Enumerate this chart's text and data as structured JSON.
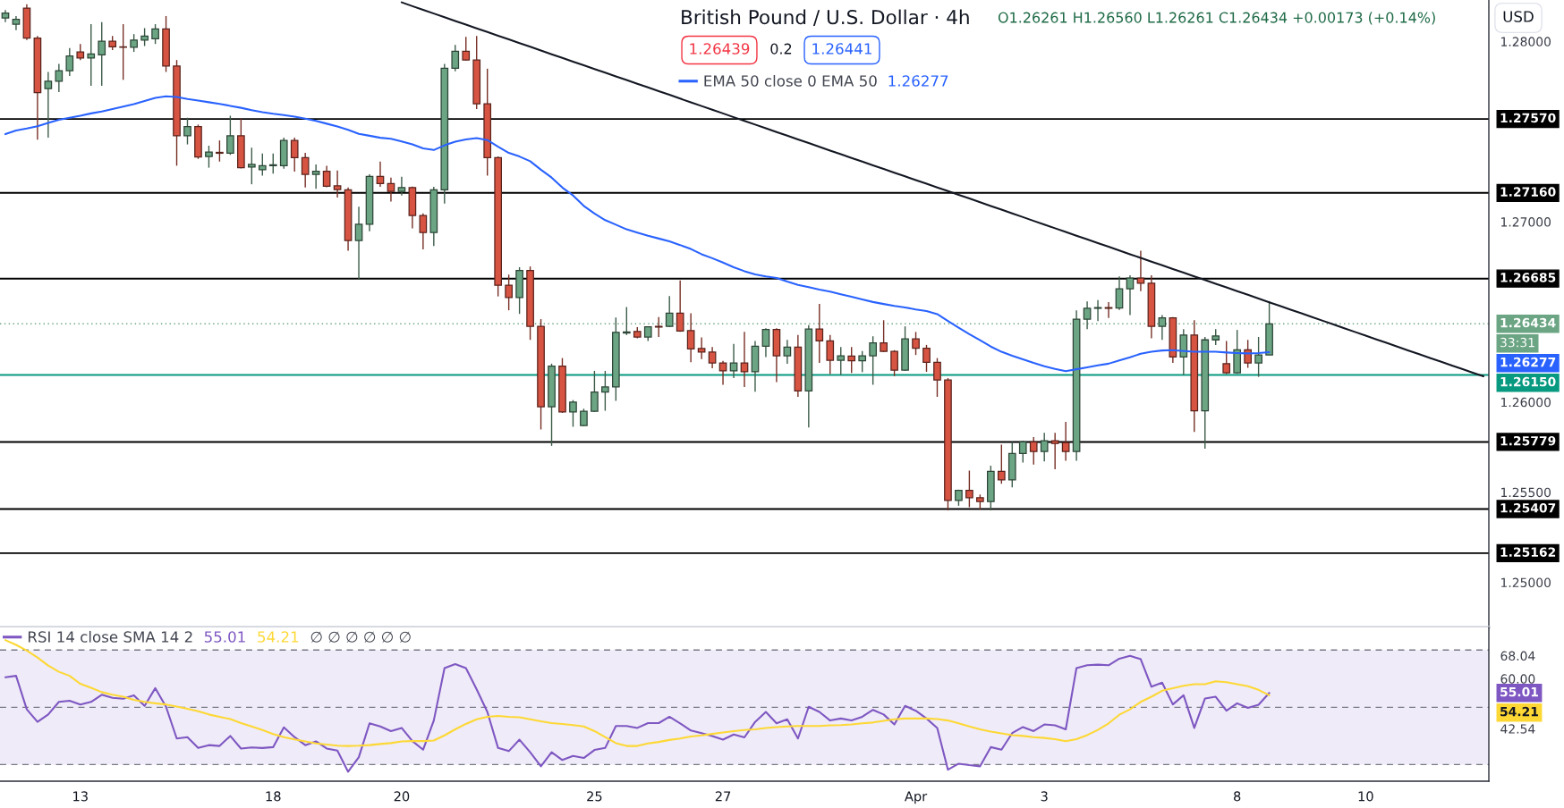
{
  "chart_data": [
    {
      "type": "candlestick",
      "title": "British Pound / U.S. Dollar · 4h",
      "categories": [
        null,
        null,
        null,
        null,
        null,
        null,
        null,
        null,
        null,
        null,
        null,
        null,
        null,
        null,
        null,
        null,
        null,
        null,
        null,
        null,
        null,
        null,
        null,
        null,
        null,
        null,
        null,
        null,
        null,
        null,
        null,
        null,
        null,
        null,
        null,
        null,
        null,
        null,
        null,
        null,
        null,
        null,
        null,
        null,
        null,
        null,
        null,
        null,
        null,
        null,
        null,
        null,
        null,
        null,
        null,
        null,
        null,
        null,
        null,
        null,
        null,
        null,
        null,
        null,
        null,
        null,
        null,
        null,
        null,
        null,
        null,
        null,
        null,
        null,
        null,
        null,
        null,
        null,
        null,
        null,
        null,
        null,
        null,
        null,
        null,
        null,
        null,
        null,
        null,
        null,
        null,
        null,
        null,
        null,
        null,
        null,
        null,
        null,
        null,
        null,
        null,
        null,
        null,
        null,
        null,
        null,
        null,
        null,
        null,
        null,
        null,
        null,
        null,
        null,
        null,
        null,
        null,
        null,
        null,
        null,
        null,
        null,
        null,
        null,
        null,
        null,
        null,
        null,
        null,
        null,
        null,
        null,
        null,
        null,
        null,
        null,
        null,
        null,
        null
      ],
      "ohlc": [
        [
          1.2813,
          1.28174,
          1.28107,
          1.28158
        ],
        [
          1.28096,
          1.28141,
          1.28063,
          1.28123
        ],
        [
          1.28185,
          1.28207,
          1.28008,
          1.28019
        ],
        [
          1.28019,
          1.2803,
          1.27455,
          1.27716
        ],
        [
          1.27738,
          1.27831,
          1.27466,
          1.2778
        ],
        [
          1.2778,
          1.27875,
          1.2772,
          1.27838
        ],
        [
          1.27838,
          1.27964,
          1.27809,
          1.2792
        ],
        [
          1.27942,
          1.27986,
          1.27897,
          1.27908
        ],
        [
          1.27908,
          1.28096,
          1.27754,
          1.27931
        ],
        [
          1.27926,
          1.28107,
          1.27754,
          1.28001
        ],
        [
          1.28001,
          1.2803,
          1.27953,
          1.2797
        ],
        [
          1.2797,
          1.28096,
          1.27787,
          1.27968
        ],
        [
          1.27968,
          1.28041,
          1.27942,
          1.28008
        ],
        [
          1.28008,
          1.28074,
          1.27975,
          1.2803
        ],
        [
          1.28015,
          1.28096,
          1.27986,
          1.2807
        ],
        [
          1.2807,
          1.28141,
          1.27831,
          1.27864
        ],
        [
          1.27864,
          1.27897,
          1.27311,
          1.27477
        ],
        [
          1.27477,
          1.27577,
          1.27429,
          1.27528
        ],
        [
          1.27528,
          1.27539,
          1.27349,
          1.2736
        ],
        [
          1.27362,
          1.27422,
          1.273,
          1.27387
        ],
        [
          1.27385,
          1.27451,
          1.27334,
          1.2738
        ],
        [
          1.2738,
          1.27588,
          1.27371,
          1.27477
        ],
        [
          1.27477,
          1.27572,
          1.27296,
          1.273
        ],
        [
          1.27303,
          1.27411,
          1.27208,
          1.27318
        ],
        [
          1.27289,
          1.27378,
          1.27256,
          1.27311
        ],
        [
          1.27311,
          1.27378,
          1.27267,
          1.27316
        ],
        [
          1.27311,
          1.27466,
          1.27294,
          1.27451
        ],
        [
          1.27451,
          1.27466,
          1.27278,
          1.27356
        ],
        [
          1.27356,
          1.27382,
          1.2719,
          1.27263
        ],
        [
          1.27263,
          1.27318,
          1.27183,
          1.2728
        ],
        [
          1.2728,
          1.27311,
          1.27192,
          1.27197
        ],
        [
          1.27199,
          1.27285,
          1.27135,
          1.27179
        ],
        [
          1.27177,
          1.2719,
          1.2684,
          1.26896
        ],
        [
          1.26896,
          1.27084,
          1.26681,
          1.26986
        ],
        [
          1.26986,
          1.27263,
          1.26947,
          1.27252
        ],
        [
          1.27252,
          1.27334,
          1.27194,
          1.27212
        ],
        [
          1.27212,
          1.27245,
          1.27112,
          1.27168
        ],
        [
          1.27168,
          1.2725,
          1.27146,
          1.2719
        ],
        [
          1.2719,
          1.27195,
          1.26964,
          1.27035
        ],
        [
          1.27035,
          1.27046,
          1.26847,
          1.2694
        ],
        [
          1.2694,
          1.27194,
          1.26865,
          1.27177
        ],
        [
          1.27177,
          1.27875,
          1.27101,
          1.27851
        ],
        [
          1.27851,
          1.27981,
          1.27835,
          1.27946
        ],
        [
          1.27946,
          1.28026,
          1.27894,
          1.27897
        ],
        [
          1.27897,
          1.2803,
          1.27625,
          1.27654
        ],
        [
          1.27654,
          1.27849,
          1.27256,
          1.27356
        ],
        [
          1.27356,
          1.27362,
          1.26586,
          1.26648
        ],
        [
          1.26648,
          1.26707,
          1.26509,
          1.2658
        ],
        [
          1.2658,
          1.26748,
          1.26489,
          1.2673
        ],
        [
          1.2673,
          1.26752,
          1.26345,
          1.2642
        ],
        [
          1.2642,
          1.2646,
          1.25848,
          1.25974
        ],
        [
          1.25974,
          1.26213,
          1.25757,
          1.26199
        ],
        [
          1.26199,
          1.26244,
          1.2594,
          1.25945
        ],
        [
          1.25945,
          1.26011,
          1.25863,
          1.26
        ],
        [
          1.2587,
          1.25963,
          1.25866,
          1.25949
        ],
        [
          1.25949,
          1.26173,
          1.25945,
          1.26056
        ],
        [
          1.26056,
          1.26173,
          1.25952,
          1.26084
        ],
        [
          1.26084,
          1.26469,
          1.26007,
          1.26387
        ],
        [
          1.26383,
          1.26527,
          1.26372,
          1.26389
        ],
        [
          1.26392,
          1.26416,
          1.26354,
          1.26361
        ],
        [
          1.26361,
          1.2642,
          1.26339,
          1.26418
        ],
        [
          1.2642,
          1.26471,
          1.26361,
          1.26416
        ],
        [
          1.2642,
          1.26588,
          1.26416,
          1.26493
        ],
        [
          1.26493,
          1.26675,
          1.2639,
          1.26394
        ],
        [
          1.26396,
          1.26493,
          1.26221,
          1.26295
        ],
        [
          1.26297,
          1.26359,
          1.26239,
          1.26277
        ],
        [
          1.26277,
          1.26305,
          1.26188,
          1.26217
        ],
        [
          1.26217,
          1.26228,
          1.26096,
          1.26173
        ],
        [
          1.26173,
          1.26323,
          1.26133,
          1.26217
        ],
        [
          1.26217,
          1.26389,
          1.26084,
          1.26168
        ],
        [
          1.26168,
          1.26339,
          1.26058,
          1.2631
        ],
        [
          1.2631,
          1.26409,
          1.2625,
          1.26403
        ],
        [
          1.26403,
          1.26409,
          1.26111,
          1.26257
        ],
        [
          1.26257,
          1.26345,
          1.26213,
          1.26305
        ],
        [
          1.26305,
          1.26372,
          1.26029,
          1.26062
        ],
        [
          1.26062,
          1.26427,
          1.25859,
          1.26405
        ],
        [
          1.26405,
          1.26544,
          1.26217,
          1.26339
        ],
        [
          1.26339,
          1.26372,
          1.26155,
          1.26232
        ],
        [
          1.26232,
          1.26305,
          1.26151,
          1.26257
        ],
        [
          1.26255,
          1.26305,
          1.26162,
          1.26229
        ],
        [
          1.26229,
          1.26283,
          1.26166,
          1.26257
        ],
        [
          1.26257,
          1.26365,
          1.26096,
          1.26328
        ],
        [
          1.26328,
          1.26454,
          1.26277,
          1.26281
        ],
        [
          1.26281,
          1.26288,
          1.26144,
          1.26177
        ],
        [
          1.26177,
          1.2642,
          1.26173,
          1.2635
        ],
        [
          1.2635,
          1.26389,
          1.26261,
          1.26299
        ],
        [
          1.26299,
          1.26317,
          1.26168,
          1.26221
        ],
        [
          1.26221,
          1.26244,
          1.26029,
          1.26122
        ],
        [
          1.26122,
          1.26133,
          1.25399,
          1.25454
        ],
        [
          1.25454,
          1.25514,
          1.25425,
          1.2551
        ],
        [
          1.2551,
          1.2562,
          1.25417,
          1.2547
        ],
        [
          1.2547,
          1.25487,
          1.25403,
          1.25448
        ],
        [
          1.25448,
          1.25647,
          1.25399,
          1.25616
        ],
        [
          1.25616,
          1.25764,
          1.25547,
          1.25569
        ],
        [
          1.25569,
          1.25779,
          1.25527,
          1.25715
        ],
        [
          1.25715,
          1.25786,
          1.25664,
          1.25779
        ],
        [
          1.25779,
          1.25806,
          1.25653,
          1.25726
        ],
        [
          1.25726,
          1.2583,
          1.25671,
          1.25786
        ],
        [
          1.25786,
          1.2583,
          1.25627,
          1.2577
        ],
        [
          1.25775,
          1.2589,
          1.25675,
          1.25726
        ],
        [
          1.25726,
          1.26509,
          1.25675,
          1.2646
        ],
        [
          1.2646,
          1.26558,
          1.26405,
          1.2652
        ],
        [
          1.2652,
          1.26566,
          1.26449,
          1.26524
        ],
        [
          1.26524,
          1.26555,
          1.26467,
          1.2652
        ],
        [
          1.26522,
          1.26697,
          1.26511,
          1.26628
        ],
        [
          1.26628,
          1.26703,
          1.26482,
          1.26688
        ],
        [
          1.26688,
          1.2684,
          1.26615,
          1.26659
        ],
        [
          1.26659,
          1.26703,
          1.26354,
          1.2642
        ],
        [
          1.2642,
          1.26482,
          1.26345,
          1.26467
        ],
        [
          1.26467,
          1.26471,
          1.26217,
          1.2625
        ],
        [
          1.2625,
          1.26405,
          1.26151,
          1.26372
        ],
        [
          1.26372,
          1.26454,
          1.25835,
          1.25952
        ],
        [
          1.25952,
          1.26361,
          1.25742,
          1.26345
        ],
        [
          1.26345,
          1.26405,
          1.26317,
          1.26367
        ],
        [
          1.26213,
          1.26339,
          1.26155,
          1.26162
        ],
        [
          1.26162,
          1.264,
          1.26157,
          1.2629
        ],
        [
          1.2629,
          1.26345,
          1.2619,
          1.26217
        ],
        [
          1.26217,
          1.26361,
          1.2614,
          1.26261
        ],
        [
          1.26261,
          1.2656,
          1.26261,
          1.26434
        ],
        null,
        null,
        null,
        null,
        null,
        null,
        null,
        null,
        null,
        null,
        null,
        null,
        null,
        null,
        null,
        null,
        null,
        null,
        null,
        null
      ],
      "colors": [
        "#6ba583",
        "#6ba583",
        "#d75442",
        "#d75442",
        "#6ba583",
        "#6ba583",
        "#6ba583",
        "#d75442",
        "#6ba583",
        "#6ba583",
        "#d75442",
        "#d75442",
        "#6ba583",
        "#6ba583",
        "#6ba583",
        "#d75442",
        "#d75442",
        "#6ba583",
        "#d75442",
        "#6ba583",
        "#d75442",
        "#6ba583",
        "#d75442",
        "#6ba583",
        "#6ba583",
        "#6ba583",
        "#6ba583",
        "#d75442",
        "#d75442",
        "#6ba583",
        "#d75442",
        "#d75442",
        "#d75442",
        "#6ba583",
        "#6ba583",
        "#d75442",
        "#d75442",
        "#6ba583",
        "#d75442",
        "#d75442",
        "#6ba583",
        "#6ba583",
        "#6ba583",
        "#d75442",
        "#d75442",
        "#d75442",
        "#d75442",
        "#d75442",
        "#6ba583",
        "#d75442",
        "#d75442",
        "#6ba583",
        "#d75442",
        "#6ba583",
        "#6ba583",
        "#6ba583",
        "#6ba583",
        "#6ba583",
        "#6ba583",
        "#d75442",
        "#6ba583",
        "#d75442",
        "#6ba583",
        "#d75442",
        "#d75442",
        "#d75442",
        "#d75442",
        "#d75442",
        "#6ba583",
        "#d75442",
        "#6ba583",
        "#6ba583",
        "#d75442",
        "#6ba583",
        "#d75442",
        "#6ba583",
        "#d75442",
        "#d75442",
        "#6ba583",
        "#d75442",
        "#6ba583",
        "#6ba583",
        "#d75442",
        "#d75442",
        "#6ba583",
        "#d75442",
        "#d75442",
        "#d75442",
        "#d75442",
        "#6ba583",
        "#d75442",
        "#d75442",
        "#6ba583",
        "#d75442",
        "#6ba583",
        "#6ba583",
        "#d75442",
        "#6ba583",
        "#d75442",
        "#d75442",
        "#6ba583",
        "#6ba583",
        "#6ba583",
        "#d75442",
        "#6ba583",
        "#6ba583",
        "#d75442",
        "#d75442",
        "#6ba583",
        "#d75442",
        "#6ba583",
        "#d75442",
        "#6ba583",
        "#6ba583",
        "#d75442",
        "#6ba583",
        "#d75442",
        "#6ba583",
        "#6ba583",
        null,
        null,
        null,
        null,
        null,
        null,
        null,
        null,
        null,
        null,
        null,
        null,
        null,
        null,
        null,
        null,
        null,
        null,
        null,
        null
      ],
      "series": [
        {
          "type": "line",
          "name": "EMA 50 close 0 EMA 50",
          "color": "#2962ff",
          "values": [
            1.27486,
            1.27506,
            1.27517,
            1.2753,
            1.27548,
            1.27566,
            1.27577,
            1.27588,
            1.27601,
            1.27612,
            1.27625,
            1.27639,
            1.27652,
            1.2767,
            1.27687,
            1.27696,
            1.27692,
            1.27681,
            1.27672,
            1.27663,
            1.27654,
            1.27643,
            1.27632,
            1.27619,
            1.27608,
            1.27599,
            1.27592,
            1.27583,
            1.27572,
            1.27559,
            1.27544,
            1.27528,
            1.2751,
            1.27488,
            1.27477,
            1.27466,
            1.2746,
            1.27446,
            1.27429,
            1.27407,
            1.27398,
            1.27424,
            1.27444,
            1.27457,
            1.27464,
            1.27453,
            1.27416,
            1.27382,
            1.27362,
            1.27336,
            1.27289,
            1.27245,
            1.2719,
            1.27146,
            1.27088,
            1.27046,
            1.27009,
            1.26984,
            1.26958,
            1.2694,
            1.26922,
            1.26907,
            1.26891,
            1.26871,
            1.26849,
            1.2682,
            1.26798,
            1.26774,
            1.26748,
            1.26726,
            1.26708,
            1.26697,
            1.26688,
            1.26668,
            1.2665,
            1.26637,
            1.26624,
            1.26613,
            1.26598,
            1.26584,
            1.26569,
            1.26555,
            1.26544,
            1.26533,
            1.26525,
            1.26514,
            1.26505,
            1.26488,
            1.2645,
            1.26413,
            1.26377,
            1.26343,
            1.26308,
            1.26279,
            1.26257,
            1.26237,
            1.26217,
            1.26199,
            1.26184,
            1.26171,
            1.26182,
            1.26193,
            1.26204,
            1.26213,
            1.26231,
            1.26248,
            1.26268,
            1.26279,
            1.26286,
            1.26288,
            1.26283,
            1.26279,
            1.26279,
            1.26279,
            1.26275,
            1.26272,
            1.2627,
            1.26272,
            1.26277,
            null,
            null,
            null,
            null,
            null,
            null,
            null,
            null,
            null,
            null,
            null,
            null,
            null,
            null,
            null,
            null,
            null,
            null,
            null,
            null
          ]
        },
        {
          "type": "line",
          "color": "#131722",
          "values": [
            null,
            null,
            null,
            null,
            null,
            null,
            null,
            null,
            null,
            null,
            null,
            null,
            null,
            null,
            null,
            null,
            null,
            null,
            null,
            null,
            null,
            null,
            null,
            null,
            null,
            null,
            null,
            null,
            null,
            null,
            null,
            null,
            null,
            null,
            null,
            null,
            null,
            1.28217,
            1.28196,
            1.28176,
            1.28155,
            1.28135,
            1.28114,
            1.28094,
            1.28073,
            1.28053,
            1.28032,
            1.28012,
            1.27991,
            1.27971,
            1.2795,
            1.27929,
            1.27909,
            1.27888,
            1.27868,
            1.27847,
            1.27827,
            1.27806,
            1.27786,
            1.27765,
            1.27745,
            1.27724,
            1.27704,
            1.27683,
            1.27662,
            1.27642,
            1.27621,
            1.27601,
            1.2758,
            1.2756,
            1.27539,
            1.27519,
            1.27498,
            1.27478,
            1.27457,
            1.27437,
            1.27416,
            1.27395,
            1.27375,
            1.27354,
            1.27334,
            1.27313,
            1.27293,
            1.27272,
            1.27252,
            1.27231,
            1.27211,
            1.2719,
            1.2717,
            1.27149,
            1.27129,
            1.27108,
            1.27087,
            1.27067,
            1.27046,
            1.27026,
            1.27005,
            1.26985,
            1.26964,
            1.26944,
            1.26923,
            1.26903,
            1.26882,
            1.26862,
            1.26841,
            1.2682,
            1.268,
            1.26779,
            1.26759,
            1.26738,
            1.26718,
            1.26697,
            1.26677,
            1.26656,
            1.26636,
            1.26615,
            1.26595,
            1.26574,
            1.26553,
            1.26533,
            1.26512,
            1.26492,
            1.26471,
            1.26451,
            1.2643,
            1.2641,
            1.26389,
            1.26369,
            1.26348,
            1.26328,
            1.26307,
            1.26286,
            1.26266,
            1.26245,
            1.26225,
            1.26204,
            1.26184,
            1.26163,
            1.26143
          ]
        }
      ],
      "ylim": [
        1.2475,
        1.2823
      ],
      "yticks": [
        {
          "value": 1.25,
          "label": "1.25000"
        },
        {
          "value": 1.255,
          "label": "1.25500"
        },
        {
          "value": 1.26,
          "label": "1.26000"
        },
        {
          "value": 1.27,
          "label": "1.27000"
        },
        {
          "value": 1.28,
          "label": "1.28000"
        }
      ],
      "ref_lines": [
        {
          "axis": "y",
          "value": 1.2757,
          "label": "1.27570",
          "color": "#000000"
        },
        {
          "axis": "y",
          "value": 1.2716,
          "label": "1.27160",
          "color": "#000000"
        },
        {
          "axis": "y",
          "value": 1.26685,
          "label": "1.26685",
          "color": "#000000"
        },
        {
          "axis": "y",
          "value": 1.26434,
          "label": "1.26434",
          "color": "#6ba583",
          "line_style": "dotted"
        },
        {
          "axis": "y",
          "value": 1.2615,
          "label": "1.26150",
          "color": "#089981"
        },
        {
          "axis": "y",
          "value": 1.25779,
          "label": "1.25779",
          "color": "#000000"
        },
        {
          "axis": "y",
          "value": 1.25407,
          "label": "1.25407",
          "color": "#000000"
        },
        {
          "axis": "y",
          "value": 1.25162,
          "label": "1.25162",
          "color": "#000000"
        }
      ],
      "annotations": [
        "O1.26261 H1.26560 L1.26261 C1.26434 +0.00173 (+0.14%)",
        "1.26439",
        "0.2",
        "1.26441",
        "USD",
        "33:31",
        "1.26277",
        "1.26277"
      ],
      "legend": "top",
      "grid": false,
      "tick_labels": "y"
    },
    {
      "type": "line",
      "categories": [
        null,
        null,
        null,
        null,
        null,
        null,
        null,
        "13",
        null,
        null,
        null,
        null,
        null,
        null,
        null,
        null,
        null,
        null,
        null,
        null,
        null,
        null,
        null,
        null,
        null,
        "18",
        null,
        null,
        null,
        null,
        null,
        null,
        null,
        null,
        null,
        null,
        null,
        "20",
        null,
        null,
        null,
        null,
        null,
        null,
        null,
        null,
        null,
        null,
        null,
        null,
        null,
        null,
        null,
        null,
        null,
        "25",
        null,
        null,
        null,
        null,
        null,
        null,
        null,
        null,
        null,
        null,
        null,
        "27",
        null,
        null,
        null,
        null,
        null,
        null,
        null,
        null,
        null,
        null,
        null,
        null,
        null,
        null,
        null,
        null,
        null,
        "Apr",
        null,
        null,
        null,
        null,
        null,
        null,
        null,
        null,
        null,
        null,
        null,
        "3",
        null,
        null,
        null,
        null,
        null,
        null,
        null,
        null,
        null,
        null,
        null,
        null,
        null,
        null,
        null,
        null,
        null,
        "8",
        null,
        null,
        null,
        null,
        null,
        null,
        null,
        null,
        null,
        null,
        null,
        "10",
        null,
        null,
        null,
        null,
        null,
        null,
        null,
        null,
        null,
        null,
        null
      ],
      "series": [
        {
          "name": "RSI 14 close SMA 14 2",
          "color": "#7e57c2",
          "values": [
            60.5,
            61.0,
            49.3,
            44.9,
            47.5,
            51.9,
            52.3,
            51.0,
            51.9,
            54.4,
            53.3,
            53.0,
            54.2,
            50.5,
            56.7,
            50.2,
            39.1,
            39.6,
            35.8,
            36.8,
            36.5,
            40.0,
            35.6,
            36.0,
            35.8,
            36.1,
            43.0,
            39.6,
            36.8,
            38.1,
            35.6,
            34.9,
            27.5,
            32.6,
            44.4,
            43.3,
            41.7,
            42.8,
            38.2,
            35.2,
            45.4,
            63.7,
            65.1,
            63.7,
            56.3,
            48.4,
            35.8,
            34.7,
            38.7,
            34.3,
            29.4,
            34.3,
            31.6,
            33.0,
            32.3,
            35.1,
            35.8,
            43.5,
            43.5,
            42.8,
            44.5,
            44.5,
            46.7,
            44.4,
            41.9,
            41.0,
            40.0,
            38.7,
            40.5,
            39.5,
            44.9,
            48.4,
            44.4,
            45.8,
            39.1,
            50.2,
            48.4,
            45.4,
            46.1,
            45.4,
            46.7,
            49.1,
            47.5,
            44.0,
            50.5,
            48.8,
            46.1,
            42.8,
            28.2,
            30.3,
            29.8,
            29.4,
            36.1,
            35.2,
            41.0,
            43.1,
            41.7,
            44.0,
            43.7,
            42.3,
            63.7,
            64.7,
            64.9,
            64.7,
            67.0,
            68.0,
            66.8,
            57.2,
            58.6,
            51.0,
            54.2,
            42.8,
            53.1,
            53.7,
            48.8,
            51.4,
            49.8,
            50.9,
            55.01,
            null,
            null,
            null,
            null,
            null,
            null,
            null,
            null,
            null,
            null,
            null,
            null,
            null,
            null,
            null,
            null,
            null,
            null,
            null,
            null
          ]
        },
        {
          "color": "#fdd835",
          "values": [
            73.5,
            71.8,
            69.8,
            67.4,
            64.6,
            62.4,
            61.0,
            58.2,
            56.8,
            55.3,
            54.4,
            53.7,
            52.6,
            51.9,
            51.4,
            51.0,
            50.3,
            49.5,
            48.6,
            47.5,
            46.7,
            45.9,
            44.5,
            43.3,
            42.1,
            40.7,
            39.6,
            38.8,
            38.1,
            37.4,
            37.0,
            36.6,
            36.5,
            36.6,
            36.8,
            37.2,
            37.5,
            38.1,
            38.2,
            38.2,
            38.4,
            40.2,
            42.3,
            44.2,
            45.8,
            46.7,
            47.0,
            46.7,
            46.5,
            45.8,
            45.1,
            44.5,
            44.2,
            43.8,
            43.3,
            41.7,
            39.6,
            37.5,
            36.5,
            36.5,
            37.4,
            37.9,
            38.6,
            39.1,
            39.8,
            40.2,
            40.7,
            41.2,
            41.7,
            42.1,
            42.3,
            42.8,
            43.1,
            43.3,
            43.5,
            43.5,
            43.5,
            43.7,
            43.8,
            44.0,
            44.4,
            44.7,
            45.3,
            45.8,
            46.1,
            46.1,
            46.1,
            45.9,
            45.4,
            44.4,
            43.3,
            42.3,
            41.5,
            40.9,
            40.3,
            40.0,
            39.6,
            39.3,
            38.9,
            38.2,
            38.9,
            40.3,
            42.1,
            44.4,
            47.4,
            49.3,
            51.9,
            53.7,
            55.8,
            56.7,
            57.5,
            58.1,
            58.1,
            59.1,
            58.8,
            58.1,
            57.4,
            56.1,
            54.21,
            null,
            null,
            null,
            null,
            null,
            null,
            null,
            null,
            null,
            null,
            null,
            null,
            null,
            null,
            null,
            null,
            null,
            null,
            null,
            null
          ]
        }
      ],
      "ylim": [
        24.2,
        77.9
      ],
      "yticks": [
        {
          "value": 68.04,
          "label": "68.04"
        },
        {
          "value": 60,
          "label": "60.00"
        },
        {
          "value": 42.54,
          "label": "42.54"
        }
      ],
      "ref_lines": [
        {
          "axis": "y",
          "value": 70,
          "color": "#787b86",
          "line_style": "dashed"
        },
        {
          "axis": "y",
          "value": 50,
          "color": "#787b86",
          "line_style": "dashed"
        },
        {
          "axis": "y",
          "value": 30,
          "color": "#787b86",
          "line_style": "dashed"
        }
      ],
      "bands": [
        {
          "axis": "y",
          "from": 30,
          "to": 70,
          "color": "#efebf8"
        }
      ],
      "annotations": [
        "55.01",
        "54.21",
        "∅ ∅ ∅ ∅ ∅ ∅",
        "55.01",
        "54.21"
      ],
      "legend": "top left",
      "grid": false
    }
  ]
}
